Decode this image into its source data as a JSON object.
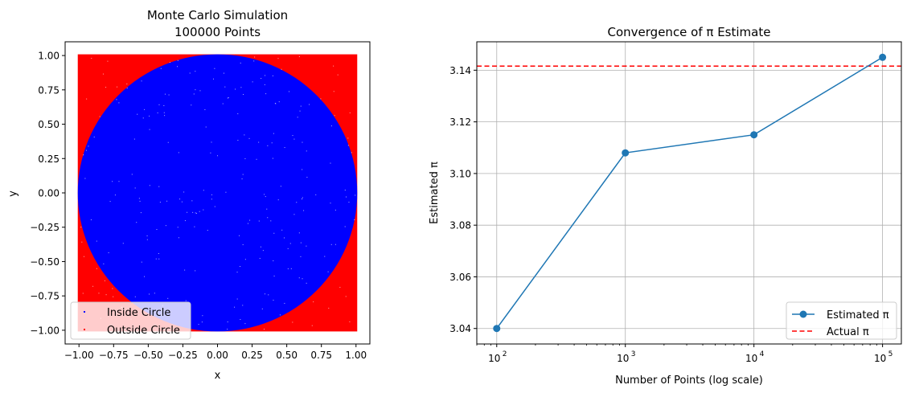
{
  "chart_data": [
    {
      "type": "scatter",
      "title": "Monte Carlo Simulation\n100000 Points",
      "title_lines": [
        "Monte Carlo Simulation",
        "100000 Points"
      ],
      "xlabel": "x",
      "ylabel": "y",
      "xlim": [
        -1.1,
        1.1
      ],
      "ylim": [
        -1.1,
        1.1
      ],
      "xticks": [
        -1.0,
        -0.75,
        -0.5,
        -0.25,
        0.0,
        0.25,
        0.5,
        0.75,
        1.0
      ],
      "xtick_labels": [
        "−1.00",
        "−0.75",
        "−0.50",
        "−0.25",
        "0.00",
        "0.25",
        "0.50",
        "0.75",
        "1.00"
      ],
      "yticks": [
        -1.0,
        -0.75,
        -0.5,
        -0.25,
        0.0,
        0.25,
        0.5,
        0.75,
        1.0
      ],
      "ytick_labels": [
        "−1.00",
        "−0.75",
        "−0.50",
        "−0.25",
        "0.00",
        "0.25",
        "0.50",
        "0.75",
        "1.00"
      ],
      "grid": false,
      "legend_location": "lower-left",
      "series": [
        {
          "name": "Inside Circle",
          "color": "#0000ff",
          "region": "x^2 + y^2 <= 1"
        },
        {
          "name": "Outside Circle",
          "color": "#ff0000",
          "region": "x^2 + y^2 > 1, -1 <= x,y <= 1"
        }
      ],
      "point_count": 100000
    },
    {
      "type": "line",
      "title": "Convergence of π Estimate",
      "xlabel": "Number of Points (log scale)",
      "ylabel": "Estimated π",
      "x_scale": "log",
      "xlim": [
        70,
        140000
      ],
      "ylim": [
        3.034,
        3.151
      ],
      "xticks": [
        100,
        1000,
        10000,
        100000
      ],
      "xtick_labels": [
        {
          "base": "10",
          "exp": "2"
        },
        {
          "base": "10",
          "exp": "3"
        },
        {
          "base": "10",
          "exp": "4"
        },
        {
          "base": "10",
          "exp": "5"
        }
      ],
      "yticks": [
        3.04,
        3.06,
        3.08,
        3.1,
        3.12,
        3.14
      ],
      "ytick_labels": [
        "3.04",
        "3.06",
        "3.08",
        "3.10",
        "3.12",
        "3.14"
      ],
      "grid": true,
      "legend_location": "lower-right",
      "series": [
        {
          "name": "Estimated π",
          "color": "#1f77b4",
          "x": [
            100,
            1000,
            10000,
            100000
          ],
          "y": [
            3.04,
            3.108,
            3.115,
            3.145
          ]
        }
      ],
      "reference_lines": [
        {
          "name": "Actual π",
          "color": "#ff0000",
          "style": "dashed",
          "y": 3.14159
        }
      ]
    }
  ]
}
